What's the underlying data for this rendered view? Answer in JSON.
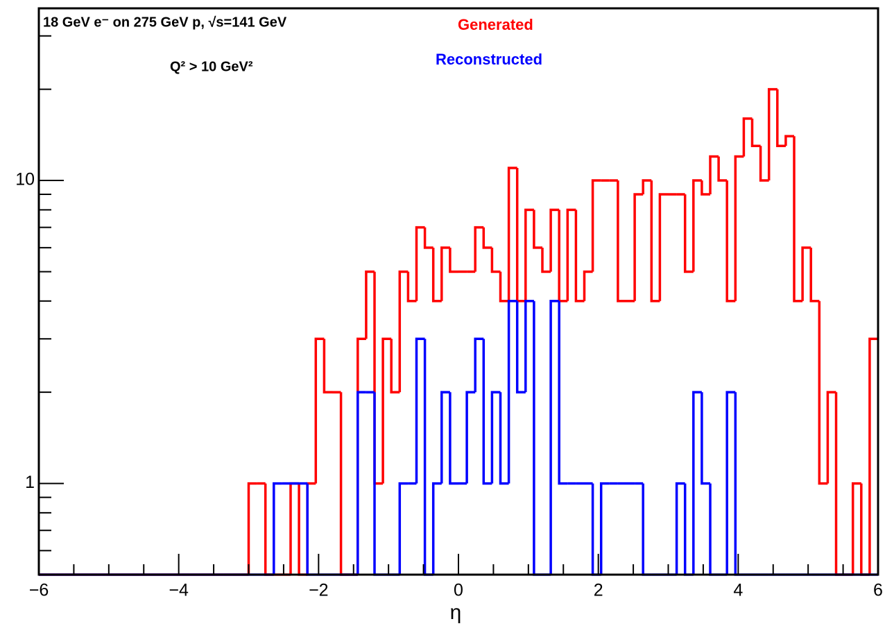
{
  "chart_data": {
    "type": "histogram",
    "title": "18 GeV e⁻ on 275 GeV p,  √s=141 GeV",
    "annotations": [
      "Q² > 10 GeV²"
    ],
    "x_label": "η",
    "log_y": true,
    "bins": [
      -6,
      -5.88,
      -5.76,
      -5.64,
      -5.52,
      -5.4,
      -5.28,
      -5.16,
      -5.04,
      -4.92,
      -4.8,
      -4.68,
      -4.56,
      -4.44,
      -4.32,
      -4.2,
      -4.08,
      -3.96,
      -3.84,
      -3.72,
      -3.6,
      -3.48,
      -3.36,
      -3.24,
      -3.12,
      -3,
      -2.88,
      -2.76,
      -2.64,
      -2.52,
      -2.4,
      -2.28,
      -2.16,
      -2.04,
      -1.92,
      -1.8,
      -1.68,
      -1.56,
      -1.44,
      -1.32,
      -1.2,
      -1.08,
      -0.96,
      -0.84,
      -0.72,
      -0.6,
      -0.48,
      -0.36,
      -0.24,
      -0.12,
      0,
      0.12,
      0.24,
      0.36,
      0.48,
      0.6,
      0.72,
      0.84,
      0.96,
      1.08,
      1.2,
      1.32,
      1.44,
      1.56,
      1.68,
      1.8,
      1.92,
      2.04,
      2.16,
      2.28,
      2.4,
      2.52,
      2.64,
      2.76,
      2.88,
      3,
      3.12,
      3.24,
      3.36,
      3.48,
      3.6,
      3.72,
      3.84,
      3.96,
      4.08,
      4.2,
      4.32,
      4.44,
      4.56,
      4.68,
      4.8,
      4.92,
      5.04,
      5.16,
      5.28,
      5.4,
      5.52,
      5.64,
      5.76,
      5.88,
      6
    ],
    "series": [
      {
        "name": "Generated",
        "color": "#ff0000",
        "values": [
          0,
          0,
          0,
          0,
          0,
          0,
          0,
          0,
          0,
          0,
          0,
          0,
          0,
          0,
          0,
          0,
          0,
          0,
          0,
          0,
          0,
          0,
          0,
          0,
          0,
          1,
          1,
          0,
          0,
          0,
          1,
          0,
          1,
          3,
          2,
          2,
          0,
          0,
          3,
          5,
          1,
          3,
          2,
          5,
          4,
          7,
          6,
          4,
          6,
          5,
          5,
          5,
          7,
          6,
          5,
          4,
          11,
          4,
          8,
          6,
          5,
          8,
          4,
          8,
          4,
          5,
          10,
          10,
          10,
          4,
          4,
          9,
          10,
          4,
          9,
          9,
          9,
          5,
          10,
          9,
          12,
          10,
          4,
          12,
          16,
          13,
          10,
          20,
          13,
          14,
          4,
          6,
          4,
          1,
          2,
          0,
          0,
          1,
          0,
          3
        ]
      },
      {
        "name": "Reconstructed",
        "color": "#0000ff",
        "values": [
          0,
          0,
          0,
          0,
          0,
          0,
          0,
          0,
          0,
          0,
          0,
          0,
          0,
          0,
          0,
          0,
          0,
          0,
          0,
          0,
          0,
          0,
          0,
          0,
          0,
          0,
          0,
          0,
          1,
          1,
          1,
          1,
          0,
          0,
          0,
          0,
          0,
          0,
          2,
          2,
          0,
          0,
          0,
          1,
          1,
          3,
          0,
          1,
          2,
          1,
          1,
          2,
          3,
          1,
          2,
          1,
          4,
          2,
          4,
          0,
          0,
          4,
          1,
          1,
          1,
          1,
          0,
          1,
          1,
          1,
          1,
          1,
          0,
          0,
          0,
          0,
          1,
          0,
          2,
          1,
          0,
          0,
          2,
          0,
          0,
          0,
          0,
          0,
          0,
          0,
          0,
          0,
          0,
          0,
          0,
          0,
          0,
          0,
          0,
          0
        ]
      }
    ],
    "xlim": [
      -6,
      6
    ],
    "xticks": [
      {
        "value": -6,
        "label": "−6"
      },
      {
        "value": -4,
        "label": "−4"
      },
      {
        "value": -2,
        "label": "−2"
      },
      0,
      2,
      4,
      6
    ],
    "xminor": [
      -5.5,
      -5,
      -4.5,
      -3.5,
      -3,
      -2.5,
      -1.5,
      -1,
      -0.5,
      0.5,
      1,
      1.5,
      2.5,
      3,
      3.5,
      4.5,
      5,
      5.5
    ],
    "ylim": [
      0.5,
      37
    ],
    "yticks": [
      1,
      10
    ],
    "yminor": [
      0.6,
      0.7,
      0.8,
      0.9,
      2,
      3,
      4,
      5,
      6,
      7,
      8,
      9,
      20,
      30
    ]
  }
}
